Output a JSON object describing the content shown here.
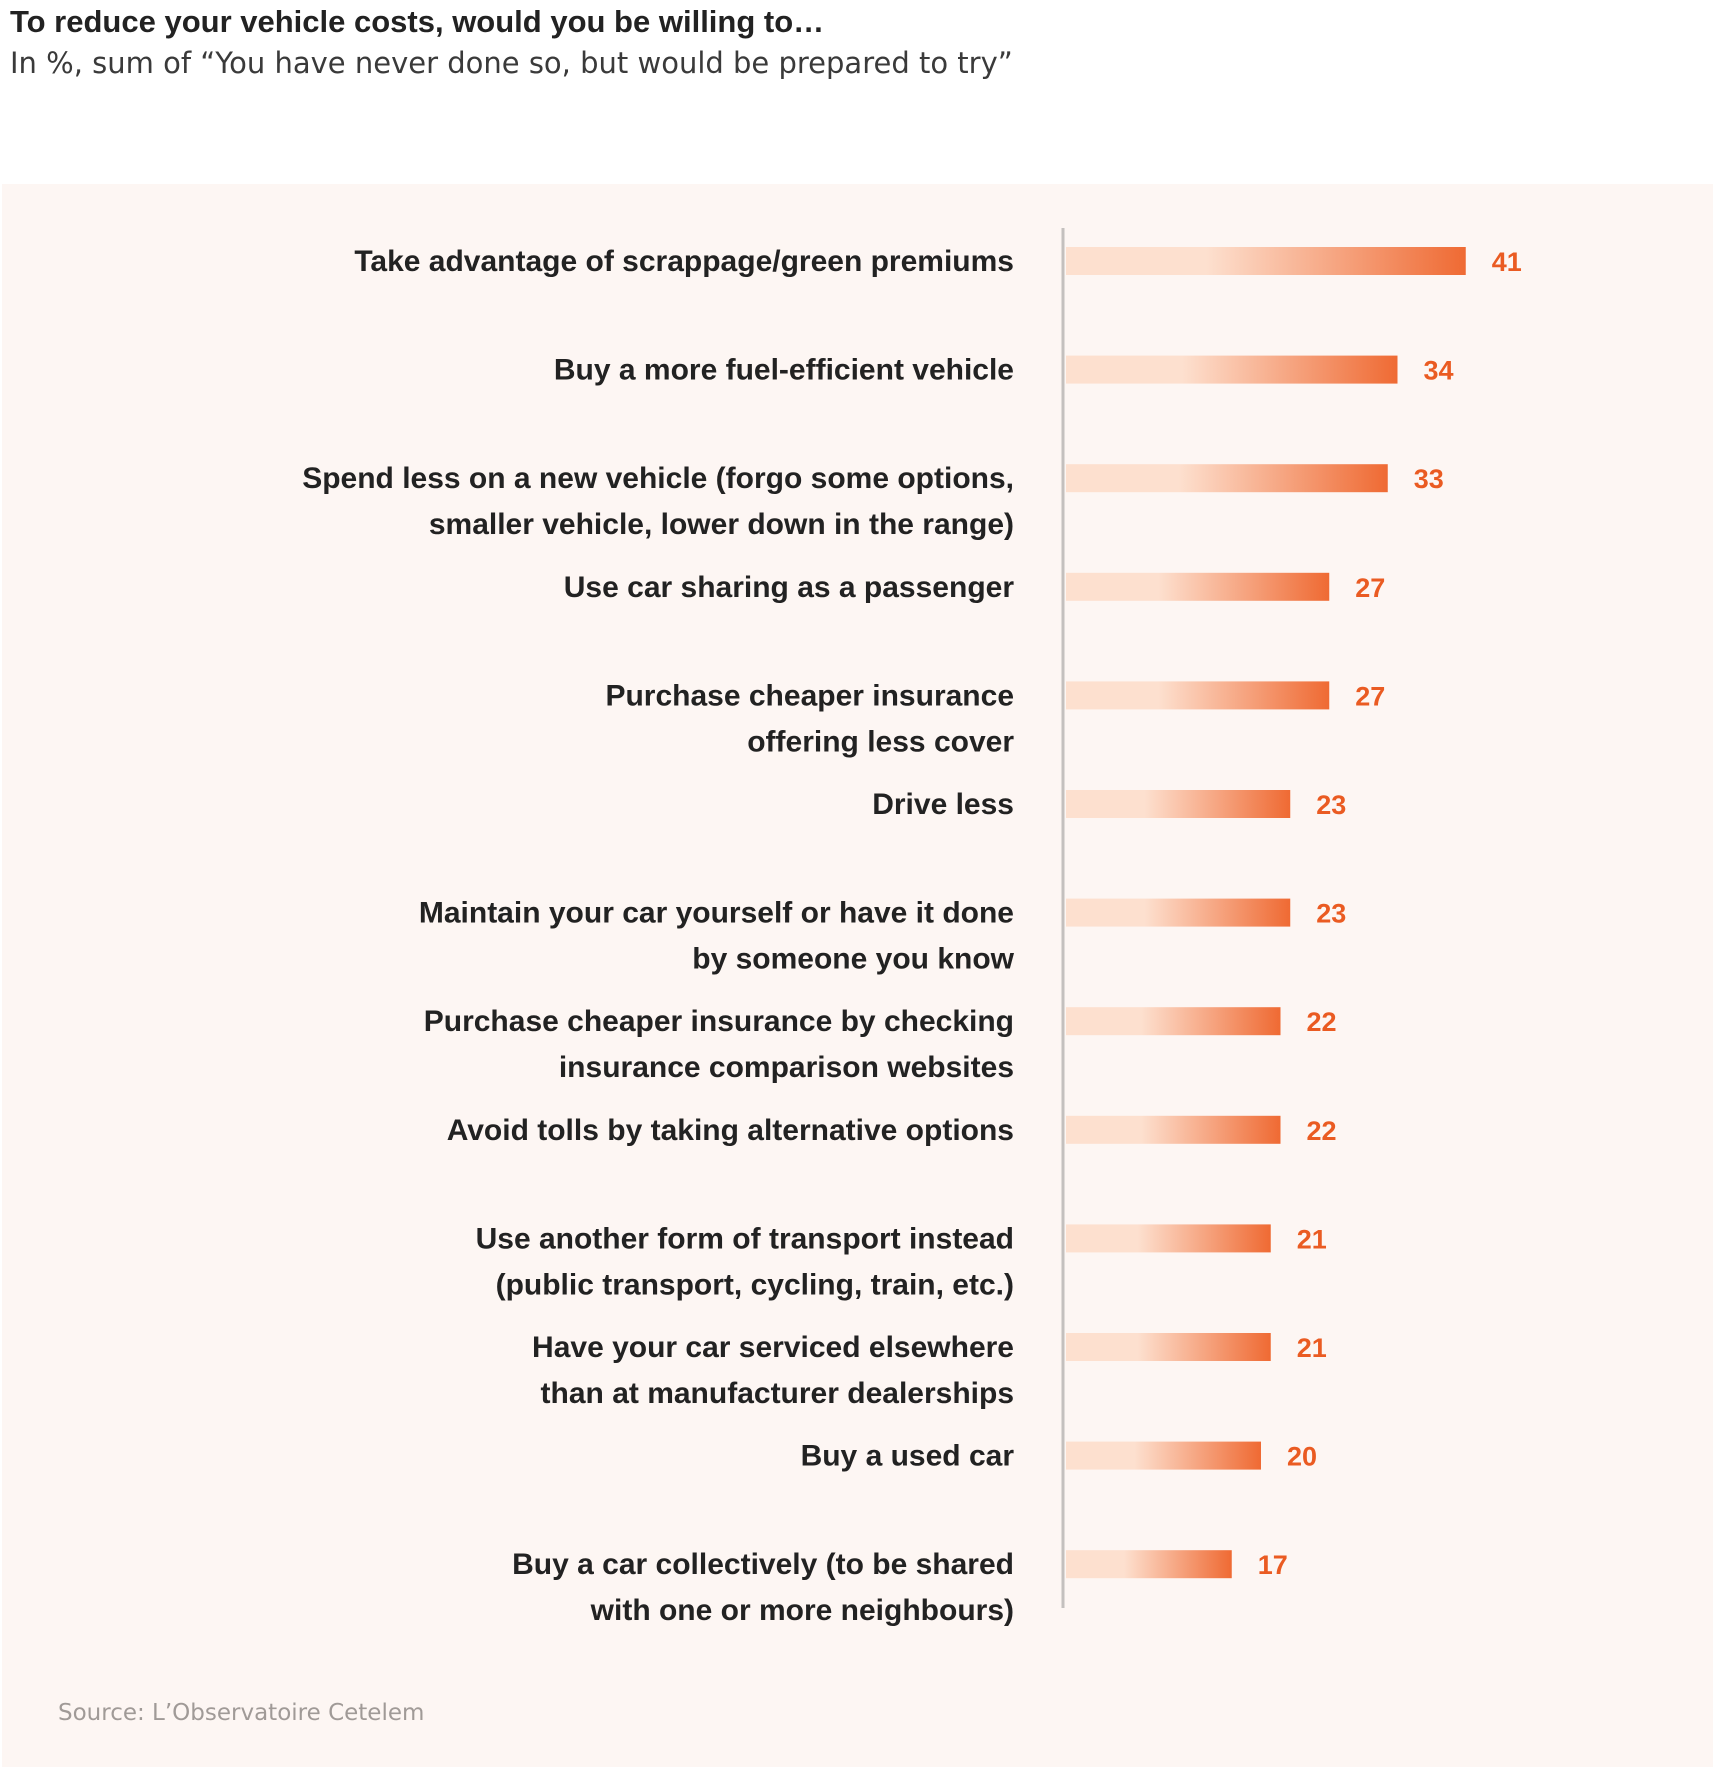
{
  "header": {
    "title": "To reduce your vehicle costs, would you be willing to…",
    "subtitle": "In %, sum of “You have never done so, but would be prepared to try”"
  },
  "footer": {
    "source": "Source: L’Observatoire Cetelem"
  },
  "colors": {
    "bar_start": "#fde0cf",
    "bar_end": "#ef6a33",
    "value_label": "#ea5b22",
    "category_label": "#222222",
    "axis_line": "#c4c0be",
    "panel_background": "#fdf6f3"
  },
  "chart_data": {
    "type": "bar",
    "orientation": "horizontal",
    "title": "To reduce your vehicle costs, would you be willing to…",
    "subtitle": "In %, sum of “You have never done so, but would be prepared to try”",
    "xlabel": "",
    "ylabel": "",
    "unit": "%",
    "xlim": [
      0,
      41
    ],
    "grid": false,
    "legend": "none",
    "categories": [
      [
        "Take advantage of scrappage/green premiums"
      ],
      [
        "Buy a more fuel-efficient vehicle"
      ],
      [
        "Spend less on a new vehicle (forgo some options,",
        "smaller vehicle, lower down in the range)"
      ],
      [
        "Use car sharing as a passenger"
      ],
      [
        "Purchase cheaper insurance",
        "offering less cover"
      ],
      [
        "Drive less"
      ],
      [
        "Maintain your car yourself or have it done",
        "by someone you know"
      ],
      [
        "Purchase cheaper insurance by checking",
        "insurance comparison websites"
      ],
      [
        "Avoid tolls by taking alternative options"
      ],
      [
        "Use another form of transport instead",
        "(public transport, cycling, train, etc.)"
      ],
      [
        "Have your car serviced elsewhere",
        "than at manufacturer dealerships"
      ],
      [
        "Buy a used car"
      ],
      [
        "Buy a car collectively (to be shared",
        "with one or more neighbours)"
      ]
    ],
    "values": [
      41,
      34,
      33,
      27,
      27,
      23,
      23,
      22,
      22,
      21,
      21,
      20,
      17
    ],
    "value_labels": [
      "41",
      "34",
      "33",
      "27",
      "27",
      "23",
      "23",
      "22",
      "22",
      "21",
      "21",
      "20",
      "17"
    ]
  }
}
